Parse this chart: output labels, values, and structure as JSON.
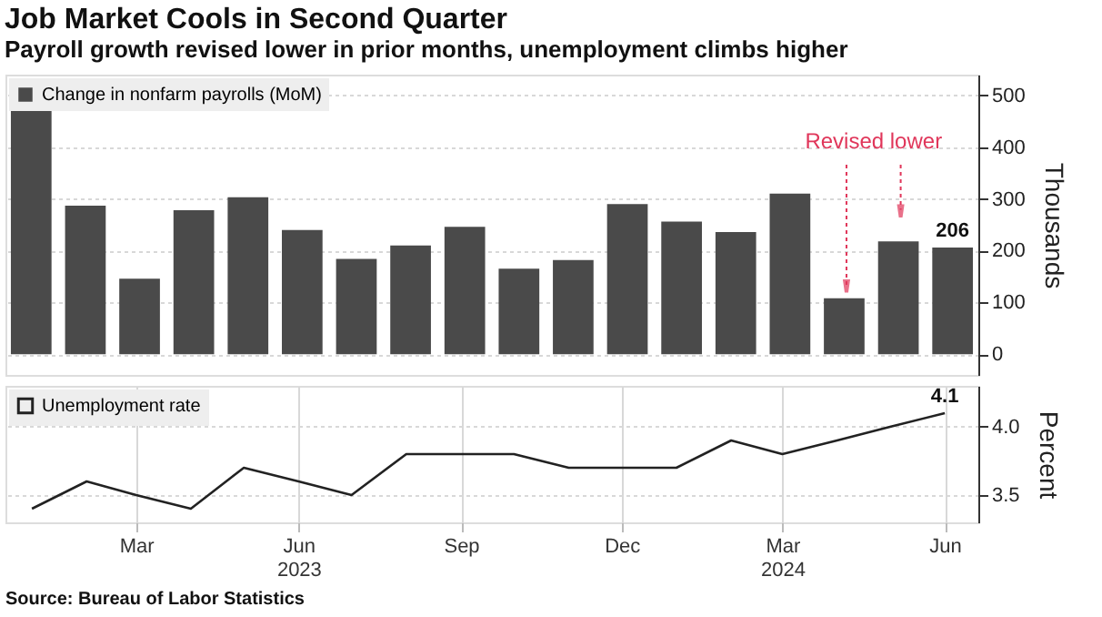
{
  "chart_data": [
    {
      "type": "bar",
      "title": "Job Market Cools in Second Quarter",
      "subtitle": "Payroll growth revised lower in prior months, unemployment climbs higher",
      "ylabel": "Thousands",
      "categories": [
        null,
        null,
        null,
        null,
        null,
        null,
        null,
        null,
        null,
        null,
        null,
        null,
        null,
        null,
        null,
        null,
        null,
        null
      ],
      "series": [
        {
          "name": "Change in nonfarm payrolls (MoM)",
          "color": "#4a4a4a",
          "values": [
            482,
            287,
            146,
            278,
            303,
            240,
            184,
            210,
            246,
            165,
            182,
            290,
            256,
            236,
            310,
            108,
            218,
            206
          ],
          "value_labels": [
            null,
            null,
            null,
            null,
            null,
            null,
            null,
            null,
            null,
            null,
            null,
            null,
            null,
            null,
            null,
            null,
            null,
            "206"
          ]
        }
      ],
      "ylim": [
        -40,
        540
      ],
      "yticks": [
        0,
        100,
        200,
        300,
        400,
        500
      ],
      "annotations": [
        "Revised lower"
      ],
      "grid": "y",
      "legend": "top left",
      "tick_labels": "y"
    },
    {
      "type": "line",
      "ylabel": "Percent",
      "x": [
        "2023-01",
        "2023-02",
        "2023-03",
        "2023-04",
        "2023-05",
        "2023-06",
        "2023-07",
        "2023-08",
        "2023-09",
        "2023-10",
        "2023-11",
        "2023-12",
        "2024-01",
        "2024-02",
        "2024-03",
        "2024-04",
        "2024-05",
        "2024-06"
      ],
      "series": [
        {
          "name": "Unemployment rate",
          "color": "#222222",
          "values": [
            3.4,
            3.6,
            3.5,
            3.4,
            3.7,
            3.6,
            3.5,
            3.8,
            3.8,
            3.8,
            3.7,
            3.7,
            3.7,
            3.9,
            3.8,
            3.9,
            4.0,
            4.1
          ],
          "value_labels": [
            null,
            null,
            null,
            null,
            null,
            null,
            null,
            null,
            null,
            null,
            null,
            null,
            null,
            null,
            null,
            null,
            null,
            "4.1"
          ]
        }
      ],
      "xlim": [
        "2022-12-17",
        "2024-06-20"
      ],
      "xticks": [
        {
          "value": "2023-03",
          "label": "Mar"
        },
        {
          "value": "2023-06",
          "label": "Jun\n2023"
        },
        {
          "value": "2023-09",
          "label": "Sep"
        },
        {
          "value": "2023-12",
          "label": "Dec"
        },
        {
          "value": "2024-03",
          "label": "Mar\n2024"
        },
        {
          "value": "2024-06",
          "label": "Jun"
        }
      ],
      "ylim": [
        3.3,
        4.3
      ],
      "yticks": [
        3.5,
        {
          "value": 4.0,
          "label": "4.0"
        }
      ],
      "annotations": [
        "Source: Bureau of Labor Statistics"
      ],
      "grid": true,
      "legend": "top left",
      "line_style": "solid",
      "marker": "none"
    }
  ]
}
